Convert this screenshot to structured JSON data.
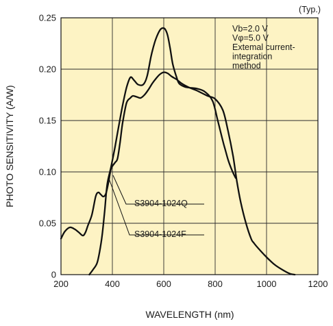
{
  "chart_data": {
    "type": "line",
    "note": "(Typ.)",
    "xlabel": "WAVELENGTH (nm)",
    "ylabel": "PHOTO SENSITIVITY (A/W)",
    "xlim": [
      200,
      1200
    ],
    "ylim": [
      0,
      0.25
    ],
    "xticks": [
      "200",
      "400",
      "600",
      "800",
      "1000",
      "1200"
    ],
    "yticks": [
      "0",
      "0.05",
      "0.10",
      "0.15",
      "0.20",
      "0.25"
    ],
    "grid": true,
    "plot_background": "#fdf3c4",
    "conditions": [
      "Vb=2.0 V",
      "Vφ=5.0 V",
      "Extemal current-",
      "integration",
      "method"
    ],
    "series": [
      {
        "name": "S3904-1024Q",
        "x": [
          200,
          215,
          235,
          255,
          270,
          285,
          295,
          305,
          320,
          335,
          345,
          355,
          365,
          375,
          385,
          395,
          410,
          420,
          430,
          440,
          455,
          470,
          480,
          495,
          510,
          525,
          540,
          555,
          570,
          585,
          600,
          615,
          630,
          650,
          670,
          700,
          730,
          770,
          800,
          830,
          850,
          870,
          885,
          900,
          920,
          940,
          950,
          970,
          1000,
          1030,
          1060,
          1090,
          1110
        ],
        "y": [
          0.035,
          0.042,
          0.046,
          0.044,
          0.041,
          0.038,
          0.041,
          0.048,
          0.058,
          0.076,
          0.08,
          0.078,
          0.076,
          0.079,
          0.09,
          0.103,
          0.109,
          0.113,
          0.129,
          0.148,
          0.167,
          0.172,
          0.174,
          0.173,
          0.172,
          0.175,
          0.18,
          0.186,
          0.191,
          0.195,
          0.197,
          0.196,
          0.193,
          0.19,
          0.186,
          0.182,
          0.179,
          0.174,
          0.171,
          0.16,
          0.14,
          0.115,
          0.09,
          0.07,
          0.05,
          0.035,
          0.031,
          0.025,
          0.017,
          0.01,
          0.005,
          0.001,
          0.0
        ]
      },
      {
        "name": "S3904-1024F",
        "x": [
          310,
          325,
          340,
          350,
          360,
          370,
          380,
          395,
          410,
          425,
          440,
          455,
          470,
          485,
          500,
          520,
          535,
          550,
          560,
          570,
          585,
          595,
          605,
          615,
          625,
          635,
          650,
          660,
          680,
          700,
          730,
          760,
          790,
          810,
          830,
          840,
          850,
          860,
          870,
          880
        ],
        "y": [
          0.0,
          0.005,
          0.011,
          0.022,
          0.038,
          0.062,
          0.088,
          0.105,
          0.124,
          0.145,
          0.165,
          0.182,
          0.192,
          0.189,
          0.185,
          0.185,
          0.193,
          0.212,
          0.222,
          0.23,
          0.238,
          0.24,
          0.239,
          0.233,
          0.22,
          0.205,
          0.192,
          0.186,
          0.183,
          0.182,
          0.181,
          0.178,
          0.169,
          0.15,
          0.13,
          0.121,
          0.112,
          0.105,
          0.099,
          0.094
        ]
      }
    ]
  }
}
